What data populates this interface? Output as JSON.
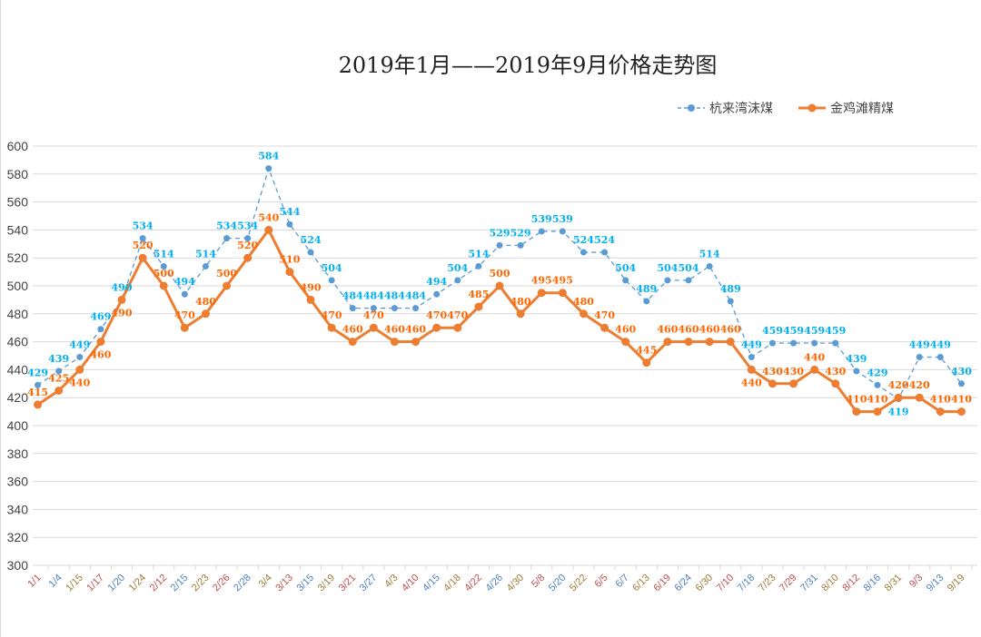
{
  "chart_data": {
    "type": "line",
    "title": "2019年1月——2019年9月价格走势图",
    "xlabel": "",
    "ylabel": "",
    "ylim": [
      300,
      600
    ],
    "ytick_step": 20,
    "grid": true,
    "legend_position": "top-right",
    "categories": [
      "1/1",
      "1/4",
      "1/15",
      "1/17",
      "1/20",
      "1/24",
      "2/12",
      "2/15",
      "2/23",
      "2/26",
      "2/28",
      "3/4",
      "3/13",
      "3/15",
      "3/19",
      "3/21",
      "3/27",
      "4/3",
      "4/10",
      "4/15",
      "4/18",
      "4/22",
      "4/26",
      "4/30",
      "5/8",
      "5/20",
      "5/22",
      "6/5",
      "6/7",
      "6/13",
      "6/19",
      "6/24",
      "6/30",
      "7/10",
      "7/18",
      "7/23",
      "7/29",
      "7/31",
      "8/10",
      "8/12",
      "8/16",
      "8/31",
      "9/3",
      "9/13",
      "9/19"
    ],
    "series": [
      {
        "name": "杭来湾沫煤",
        "color": "#5b9bd5",
        "label_color": "#00b0f0",
        "style": "dashed",
        "values": [
          429,
          439,
          449,
          469,
          490,
          534,
          514,
          494,
          514,
          534,
          534,
          584,
          544,
          524,
          504,
          484,
          484,
          484,
          484,
          494,
          504,
          514,
          529,
          529,
          539,
          539,
          524,
          524,
          504,
          489,
          504,
          504,
          514,
          489,
          449,
          459,
          459,
          459,
          459,
          439,
          429,
          419,
          449,
          449,
          430
        ]
      },
      {
        "name": "金鸡滩精煤",
        "color": "#ed7d31",
        "label_color": "#ff6600",
        "style": "solid",
        "values": [
          415,
          425,
          440,
          460,
          490,
          520,
          500,
          470,
          480,
          500,
          520,
          540,
          510,
          490,
          470,
          460,
          470,
          460,
          460,
          470,
          470,
          485,
          500,
          480,
          495,
          495,
          480,
          470,
          460,
          445,
          460,
          460,
          460,
          460,
          440,
          430,
          430,
          440,
          430,
          410,
          410,
          420,
          420,
          410,
          410
        ]
      }
    ]
  }
}
